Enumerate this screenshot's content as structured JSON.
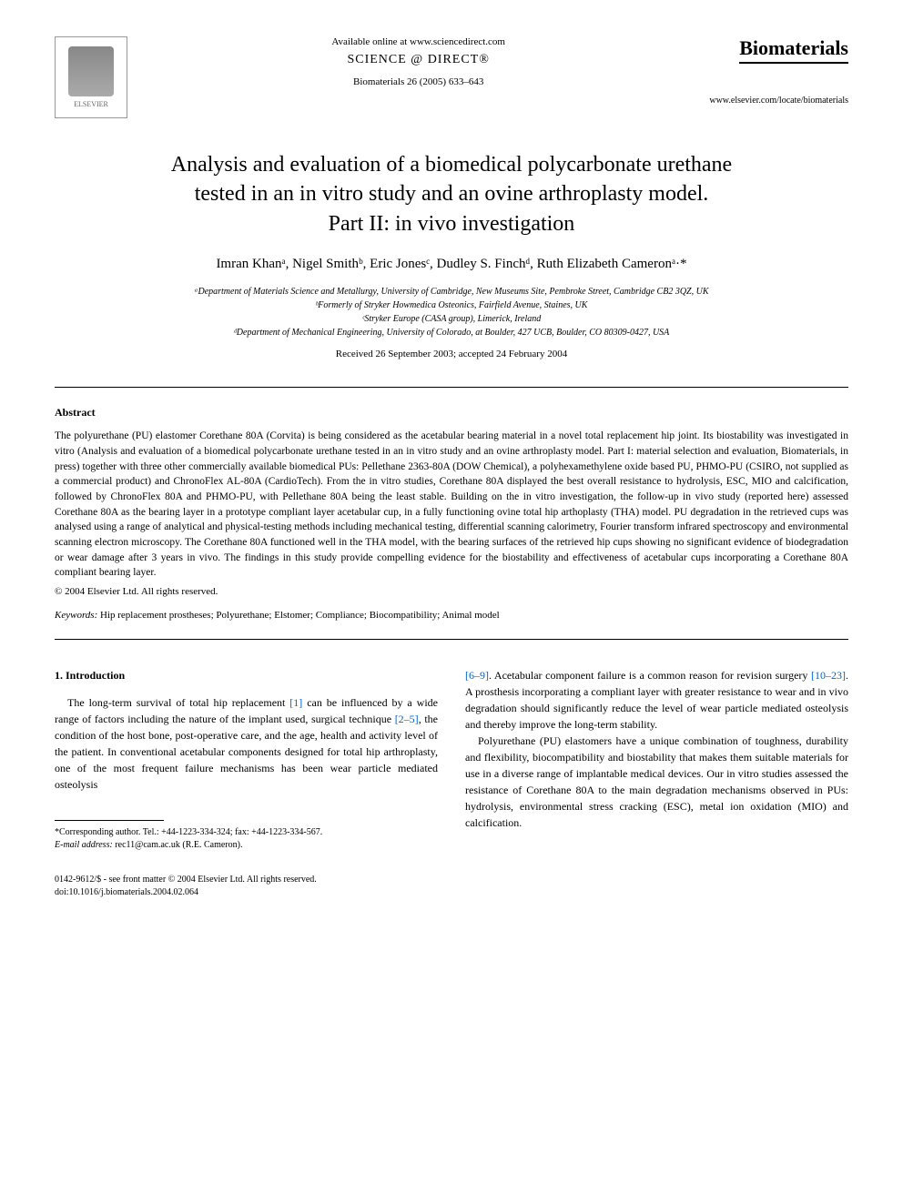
{
  "header": {
    "elsevier": "ELSEVIER",
    "available_online": "Available online at www.sciencedirect.com",
    "science_direct": "SCIENCE @ DIRECT®",
    "journal_ref": "Biomaterials 26 (2005) 633–643",
    "journal_name": "Biomaterials",
    "journal_url": "www.elsevier.com/locate/biomaterials"
  },
  "title": {
    "line1": "Analysis and evaluation of a biomedical polycarbonate urethane",
    "line2": "tested in an in vitro study and an ovine arthroplasty model.",
    "line3": "Part II: in vivo investigation"
  },
  "authors": "Imran Khanᵃ, Nigel Smithᵇ, Eric Jonesᶜ, Dudley S. Finchᵈ, Ruth Elizabeth Cameronᵃ·*",
  "affiliations": {
    "a": "ᵃDepartment of Materials Science and Metallurgy, University of Cambridge, New Museums Site, Pembroke Street, Cambridge CB2 3QZ, UK",
    "b": "ᵇFormerly of Stryker Howmedica Osteonics, Fairfield Avenue, Staines, UK",
    "c": "ᶜStryker Europe (CASA group), Limerick, Ireland",
    "d": "ᵈDepartment of Mechanical Engineering, University of Colorado, at Boulder, 427 UCB, Boulder, CO 80309-0427, USA"
  },
  "received": "Received 26 September 2003; accepted 24 February 2004",
  "abstract": {
    "heading": "Abstract",
    "text": "The polyurethane (PU) elastomer Corethane 80A (Corvita) is being considered as the acetabular bearing material in a novel total replacement hip joint. Its biostability was investigated in vitro (Analysis and evaluation of a biomedical polycarbonate urethane tested in an in vitro study and an ovine arthroplasty model. Part I: material selection and evaluation, Biomaterials, in press) together with three other commercially available biomedical PUs: Pellethane 2363-80A (DOW Chemical), a polyhexamethylene oxide based PU, PHMO-PU (CSIRO, not supplied as a commercial product) and ChronoFlex AL-80A (CardioTech). From the in vitro studies, Corethane 80A displayed the best overall resistance to hydrolysis, ESC, MIO and calcification, followed by ChronoFlex 80A and PHMO-PU, with Pellethane 80A being the least stable. Building on the in vitro investigation, the follow-up in vivo study (reported here) assessed Corethane 80A as the bearing layer in a prototype compliant layer acetabular cup, in a fully functioning ovine total hip arthoplasty (THA) model. PU degradation in the retrieved cups was analysed using a range of analytical and physical-testing methods including mechanical testing, differential scanning calorimetry, Fourier transform infrared spectroscopy and environmental scanning electron microscopy. The Corethane 80A functioned well in the THA model, with the bearing surfaces of the retrieved hip cups showing no significant evidence of biodegradation or wear damage after 3 years in vivo. The findings in this study provide compelling evidence for the biostability and effectiveness of acetabular cups incorporating a Corethane 80A compliant bearing layer.",
    "copyright": "© 2004 Elsevier Ltd. All rights reserved."
  },
  "keywords": {
    "label": "Keywords:",
    "text": "Hip replacement prostheses; Polyurethane; Elstomer; Compliance; Biocompatibility; Animal model"
  },
  "section1": {
    "heading": "1. Introduction",
    "para1_a": "The long-term survival of total hip replacement ",
    "ref1": "[1]",
    "para1_b": " can be influenced by a wide range of factors including the nature of the implant used, surgical technique ",
    "ref2": "[2–5]",
    "para1_c": ", the condition of the host bone, post-operative care, and the age, health and activity level of the patient. In conventional acetabular components designed for total hip arthroplasty, one of the most frequent failure mechanisms has been wear particle mediated osteolysis",
    "para2_a": "",
    "ref3": "[6–9]",
    "para2_b": ". Acetabular component failure is a common reason for revision surgery ",
    "ref4": "[10–23]",
    "para2_c": ". A prosthesis incorporating a compliant layer with greater resistance to wear and in vivo degradation should significantly reduce the level of wear particle mediated osteolysis and thereby improve the long-term stability.",
    "para3": "Polyurethane (PU) elastomers have a unique combination of toughness, durability and flexibility, biocompatibility and biostability that makes them suitable materials for use in a diverse range of implantable medical devices. Our in vitro studies assessed the resistance of Corethane 80A to the main degradation mechanisms observed in PUs: hydrolysis, environmental stress cracking (ESC), metal ion oxidation (MIO) and calcification."
  },
  "footnote": {
    "corresponding": "*Corresponding author. Tel.: +44-1223-334-324; fax: +44-1223-334-567.",
    "email_label": "E-mail address:",
    "email": "rec11@cam.ac.uk (R.E. Cameron)."
  },
  "footer": {
    "line1": "0142-9612/$ - see front matter © 2004 Elsevier Ltd. All rights reserved.",
    "line2": "doi:10.1016/j.biomaterials.2004.02.064"
  },
  "colors": {
    "link": "#0066cc",
    "text": "#000000",
    "background": "#ffffff"
  }
}
